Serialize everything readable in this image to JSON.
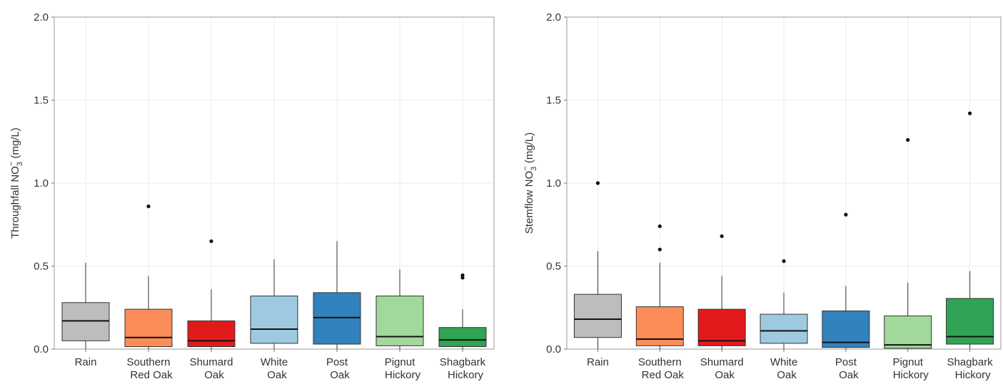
{
  "chart_data": [
    {
      "type": "box",
      "ylabel_main": "Throughfall NO",
      "ylabel_sub": "3",
      "ylabel_sup": "−",
      "ylabel_unit": " (mg/L)",
      "ylim": [
        0,
        2
      ],
      "yticks": [
        "0.0",
        "0.5",
        "1.0",
        "1.5",
        "2.0"
      ],
      "ytick_values": [
        0,
        0.5,
        1,
        1.5,
        2
      ],
      "grid": true,
      "categories": [
        {
          "line1": "Rain",
          "line2": "",
          "color": "#bdbdbd",
          "q1": 0.05,
          "median": 0.17,
          "q3": 0.28,
          "whisker_low": 0.0,
          "whisker_high": 0.52,
          "outliers": []
        },
        {
          "line1": "Southern",
          "line2": "Red Oak",
          "color": "#fc8d59",
          "q1": 0.015,
          "median": 0.07,
          "q3": 0.24,
          "whisker_low": 0.0,
          "whisker_high": 0.44,
          "outliers": [
            0.86
          ]
        },
        {
          "line1": "Shumard",
          "line2": "Oak",
          "color": "#e31a1c",
          "q1": 0.015,
          "median": 0.05,
          "q3": 0.17,
          "whisker_low": 0.0,
          "whisker_high": 0.36,
          "outliers": [
            0.65
          ]
        },
        {
          "line1": "White",
          "line2": "Oak",
          "color": "#9ecae1",
          "q1": 0.035,
          "median": 0.12,
          "q3": 0.32,
          "whisker_low": 0.0,
          "whisker_high": 0.54,
          "outliers": []
        },
        {
          "line1": "Post",
          "line2": "Oak",
          "color": "#3182bd",
          "q1": 0.03,
          "median": 0.19,
          "q3": 0.34,
          "whisker_low": 0.0,
          "whisker_high": 0.65,
          "outliers": []
        },
        {
          "line1": "Pignut",
          "line2": "Hickory",
          "color": "#a1d99b",
          "q1": 0.02,
          "median": 0.075,
          "q3": 0.32,
          "whisker_low": 0.0,
          "whisker_high": 0.48,
          "outliers": []
        },
        {
          "line1": "Shagbark",
          "line2": "Hickory",
          "color": "#31a354",
          "q1": 0.015,
          "median": 0.055,
          "q3": 0.13,
          "whisker_low": 0.0,
          "whisker_high": 0.24,
          "outliers": [
            0.43,
            0.445
          ]
        }
      ]
    },
    {
      "type": "box",
      "ylabel_main": "Stemflow NO",
      "ylabel_sub": "3",
      "ylabel_sup": "−",
      "ylabel_unit": " (mg/L)",
      "ylim": [
        0,
        2
      ],
      "yticks": [
        "0.0",
        "0.5",
        "1.0",
        "1.5",
        "2.0"
      ],
      "ytick_values": [
        0,
        0.5,
        1,
        1.5,
        2
      ],
      "grid": true,
      "categories": [
        {
          "line1": "Rain",
          "line2": "",
          "color": "#bdbdbd",
          "q1": 0.07,
          "median": 0.18,
          "q3": 0.33,
          "whisker_low": 0.0,
          "whisker_high": 0.59,
          "outliers": [
            1.0
          ]
        },
        {
          "line1": "Southern",
          "line2": "Red Oak",
          "color": "#fc8d59",
          "q1": 0.02,
          "median": 0.06,
          "q3": 0.255,
          "whisker_low": 0.0,
          "whisker_high": 0.52,
          "outliers": [
            0.6,
            0.74
          ]
        },
        {
          "line1": "Shumard",
          "line2": "Oak",
          "color": "#e31a1c",
          "q1": 0.02,
          "median": 0.05,
          "q3": 0.24,
          "whisker_low": 0.0,
          "whisker_high": 0.44,
          "outliers": [
            0.68
          ]
        },
        {
          "line1": "White",
          "line2": "Oak",
          "color": "#9ecae1",
          "q1": 0.035,
          "median": 0.11,
          "q3": 0.21,
          "whisker_low": 0.0,
          "whisker_high": 0.34,
          "outliers": [
            0.53
          ]
        },
        {
          "line1": "Post",
          "line2": "Oak",
          "color": "#3182bd",
          "q1": 0.01,
          "median": 0.04,
          "q3": 0.23,
          "whisker_low": 0.0,
          "whisker_high": 0.38,
          "outliers": [
            0.81
          ]
        },
        {
          "line1": "Pignut",
          "line2": "Hickory",
          "color": "#a1d99b",
          "q1": 0.005,
          "median": 0.025,
          "q3": 0.2,
          "whisker_low": 0.0,
          "whisker_high": 0.4,
          "outliers": [
            1.26
          ]
        },
        {
          "line1": "Shagbark",
          "line2": "Hickory",
          "color": "#31a354",
          "q1": 0.03,
          "median": 0.075,
          "q3": 0.305,
          "whisker_low": 0.0,
          "whisker_high": 0.47,
          "outliers": [
            1.42
          ]
        }
      ]
    }
  ]
}
